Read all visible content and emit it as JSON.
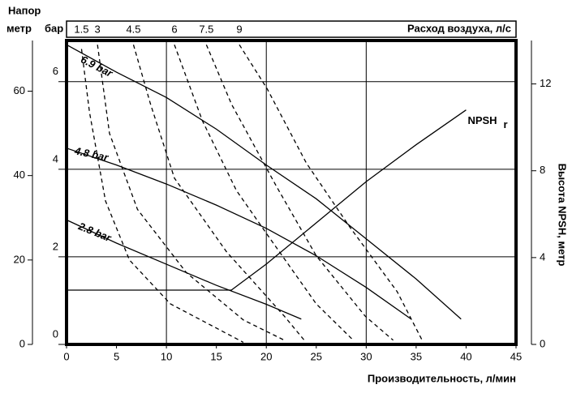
{
  "chart_data": {
    "type": "line",
    "title": "Напор",
    "y_label": "метр",
    "y_bar_label": "бар",
    "top_label": "Расход воздуха, л/с",
    "y2_label": "Высота NPSH, метр",
    "x_label": "Производительность, л/мин",
    "xlim": [
      0,
      45
    ],
    "xticks": [
      0,
      5,
      10,
      15,
      20,
      25,
      30,
      35,
      40,
      45
    ],
    "x_grid_lines": [
      10,
      20,
      30
    ],
    "ylim": [
      0,
      72
    ],
    "yticks": [
      0,
      20,
      40,
      60
    ],
    "ybarlim": [
      0,
      6.94
    ],
    "ybarticks": [
      0,
      2,
      4,
      6
    ],
    "y2lim": [
      0,
      14
    ],
    "y2ticks": [
      0,
      4,
      8,
      12
    ],
    "series": [
      {
        "name": "6.9 bar",
        "color": "#000",
        "style": "solid",
        "x": [
          0,
          5,
          10,
          15,
          20,
          25,
          30,
          35,
          39.5
        ],
        "values": [
          71,
          64.5,
          58.5,
          51,
          42.5,
          34.5,
          25,
          15.5,
          6
        ]
      },
      {
        "name": "4.8 bar",
        "color": "#000",
        "style": "solid",
        "x": [
          0,
          5,
          10,
          15,
          20,
          25,
          30,
          34.5
        ],
        "values": [
          46.5,
          42.5,
          38,
          33,
          27.5,
          21,
          13.5,
          6
        ]
      },
      {
        "name": "2.8 bar",
        "color": "#000",
        "style": "solid",
        "x": [
          0,
          5,
          10,
          15,
          20,
          23.5
        ],
        "values": [
          29.5,
          24,
          19,
          14,
          9.5,
          6
        ]
      },
      {
        "name": "NPSH",
        "subscript": "r",
        "color": "#000",
        "style": "solid",
        "axis": "y2",
        "x": [
          0,
          16.5,
          20,
          25,
          30,
          35,
          40
        ],
        "values": [
          2.5,
          2.5,
          3.7,
          5.6,
          7.5,
          9.2,
          10.8
        ]
      },
      {
        "name": "1.5",
        "color": "#000",
        "style": "dashed",
        "x": [
          1.5,
          2.3,
          3.9,
          6.3,
          10.4,
          17.7
        ],
        "values": [
          70,
          55,
          34,
          20,
          9.6,
          0.5
        ]
      },
      {
        "name": "3",
        "color": "#000",
        "style": "dashed",
        "x": [
          3.1,
          4.3,
          7.1,
          12,
          17.7,
          21.8
        ],
        "values": [
          71,
          50,
          32,
          17,
          5.8,
          1
        ]
      },
      {
        "name": "4.5",
        "color": "#000",
        "style": "dashed",
        "x": [
          6.7,
          8.4,
          10.8,
          16,
          21.8,
          23.8
        ],
        "values": [
          71,
          57,
          39.4,
          22,
          6.7,
          1
        ]
      },
      {
        "name": "6",
        "color": "#000",
        "style": "dashed",
        "x": [
          10.8,
          13.6,
          17,
          20.1,
          25,
          28.7
        ],
        "values": [
          71,
          53,
          36.5,
          26,
          9.6,
          1
        ]
      },
      {
        "name": "7.5",
        "color": "#000",
        "style": "dashed",
        "x": [
          14,
          16.5,
          21,
          25,
          29.9,
          32.7
        ],
        "values": [
          71,
          57,
          37.5,
          21,
          6.7,
          1
        ]
      },
      {
        "name": "9",
        "color": "#000",
        "style": "dashed",
        "x": [
          17.3,
          20.1,
          24,
          28.3,
          33.1,
          35.6
        ],
        "values": [
          71,
          60.5,
          43,
          28,
          12.5,
          1
        ]
      }
    ]
  }
}
